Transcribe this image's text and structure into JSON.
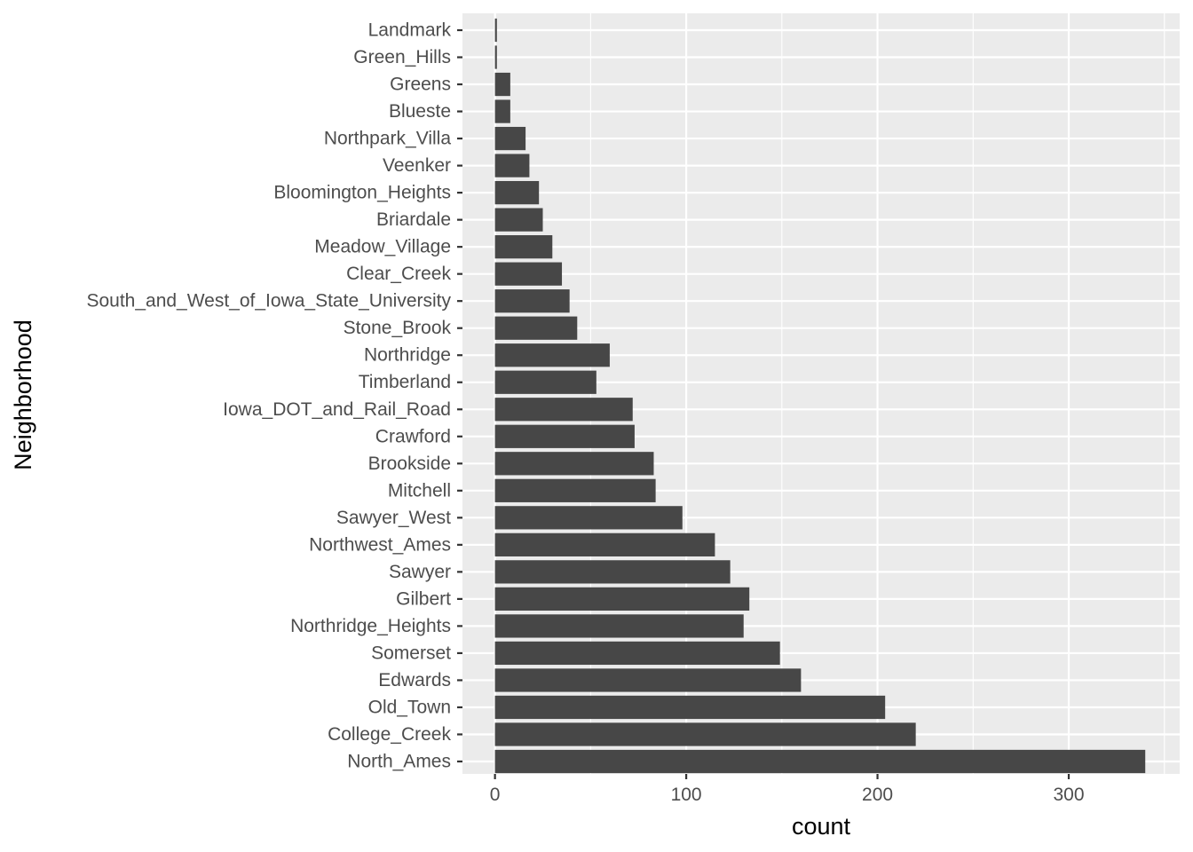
{
  "chart_data": {
    "type": "bar",
    "orientation": "horizontal",
    "xlabel": "count",
    "ylabel": "Neighborhood",
    "xlim": [
      -17,
      358
    ],
    "x_ticks": [
      0,
      100,
      200,
      300
    ],
    "grid": true,
    "bar_color": "#474747",
    "panel_color": "#ebebeb",
    "grid_color": "#ffffff",
    "categories": [
      "Landmark",
      "Green_Hills",
      "Greens",
      "Blueste",
      "Northpark_Villa",
      "Veenker",
      "Bloomington_Heights",
      "Briardale",
      "Meadow_Village",
      "Clear_Creek",
      "South_and_West_of_Iowa_State_University",
      "Stone_Brook",
      "Northridge",
      "Timberland",
      "Iowa_DOT_and_Rail_Road",
      "Crawford",
      "Brookside",
      "Mitchell",
      "Sawyer_West",
      "Northwest_Ames",
      "Sawyer",
      "Gilbert",
      "Northridge_Heights",
      "Somerset",
      "Edwards",
      "Old_Town",
      "College_Creek",
      "North_Ames"
    ],
    "values": [
      1,
      1,
      8,
      8,
      16,
      18,
      23,
      25,
      30,
      35,
      39,
      43,
      60,
      53,
      72,
      73,
      83,
      84,
      98,
      115,
      123,
      133,
      130,
      149,
      160,
      204,
      220,
      340
    ]
  }
}
